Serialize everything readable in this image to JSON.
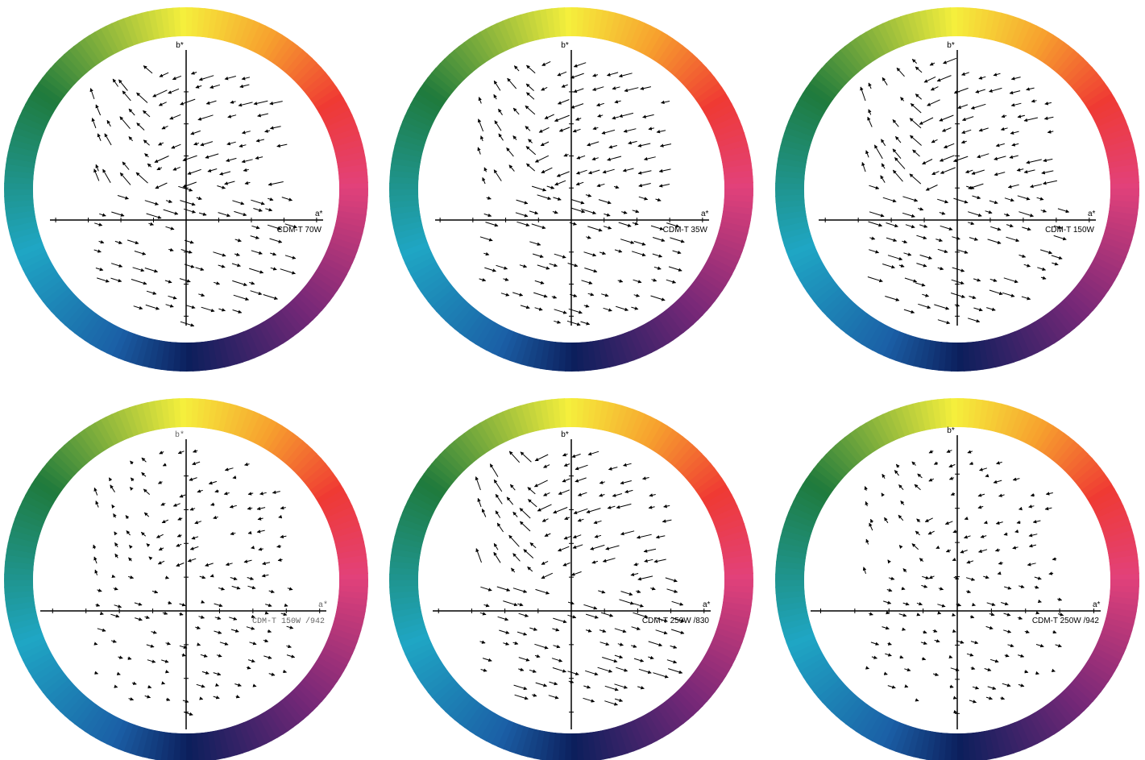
{
  "panels": [
    {
      "label": "CDM-T 70W",
      "x_axis": "a*",
      "y_axis": "b*",
      "label_style": "sans"
    },
    {
      "label": "CDM-T 35W",
      "x_axis": "a*",
      "y_axis": "b*",
      "label_style": "sans"
    },
    {
      "label": "CDM-T 150W",
      "x_axis": "a*",
      "y_axis": "b*",
      "label_style": "sans"
    },
    {
      "label": "CDM-T  150W /942",
      "x_axis": "a*",
      "y_axis": "b*",
      "label_style": "mono"
    },
    {
      "label": "CDM-T 250W /830",
      "x_axis": "a*",
      "y_axis": "b*",
      "label_style": "sans"
    },
    {
      "label": "CDM-T 250W /942",
      "x_axis": "a*",
      "y_axis": "b*",
      "label_style": "sans"
    }
  ],
  "hue_ring_colors": {
    "yellow": "#f5ef3c",
    "orange": "#f7a12e",
    "red": "#ef3a33",
    "magenta": "#e2417a",
    "blue": "#1b5fa6",
    "navy": "#0c1f5c",
    "cyan": "#1fa6c4",
    "green": "#1f7a3c"
  }
}
